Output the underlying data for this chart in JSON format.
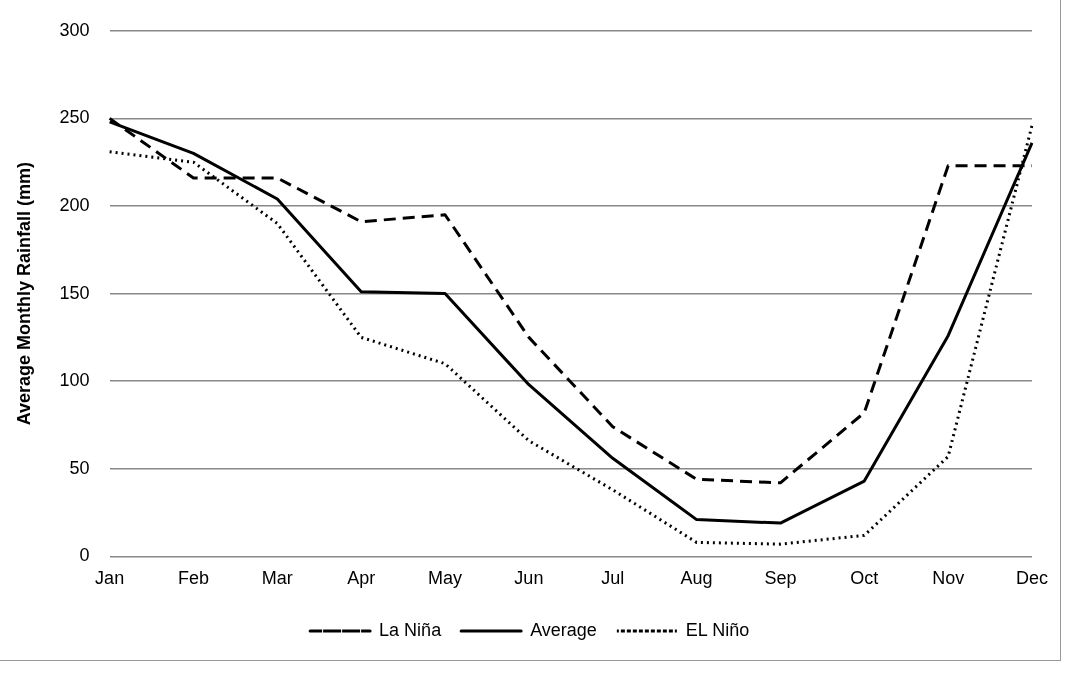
{
  "chart_data": {
    "type": "line",
    "ylabel": "Average Monthly Rainfall (mm)",
    "categories": [
      "Jan",
      "Feb",
      "Mar",
      "Apr",
      "May",
      "Jun",
      "Jul",
      "Aug",
      "Sep",
      "Oct",
      "Nov",
      "Dec"
    ],
    "series": [
      {
        "name": "La Niña",
        "color": "#000000",
        "line_style": "dashed",
        "values": [
          250,
          216,
          216,
          191,
          195,
          125,
          74,
          44,
          42,
          82,
          223,
          223
        ]
      },
      {
        "name": "Average",
        "color": "#000000",
        "line_style": "solid",
        "values": [
          248,
          230,
          204,
          151,
          150,
          98,
          56,
          21,
          19,
          43,
          126,
          236
        ]
      },
      {
        "name": "EL Niño",
        "color": "#000000",
        "line_style": "dotted",
        "values": [
          231,
          225,
          190,
          125,
          110,
          66,
          38,
          8,
          7,
          12,
          57,
          246
        ]
      }
    ],
    "ylim": [
      0,
      300
    ],
    "yticks": [
      0,
      50,
      100,
      150,
      200,
      250,
      300
    ],
    "grid": "y",
    "legend": "bottom",
    "marker": "none"
  }
}
